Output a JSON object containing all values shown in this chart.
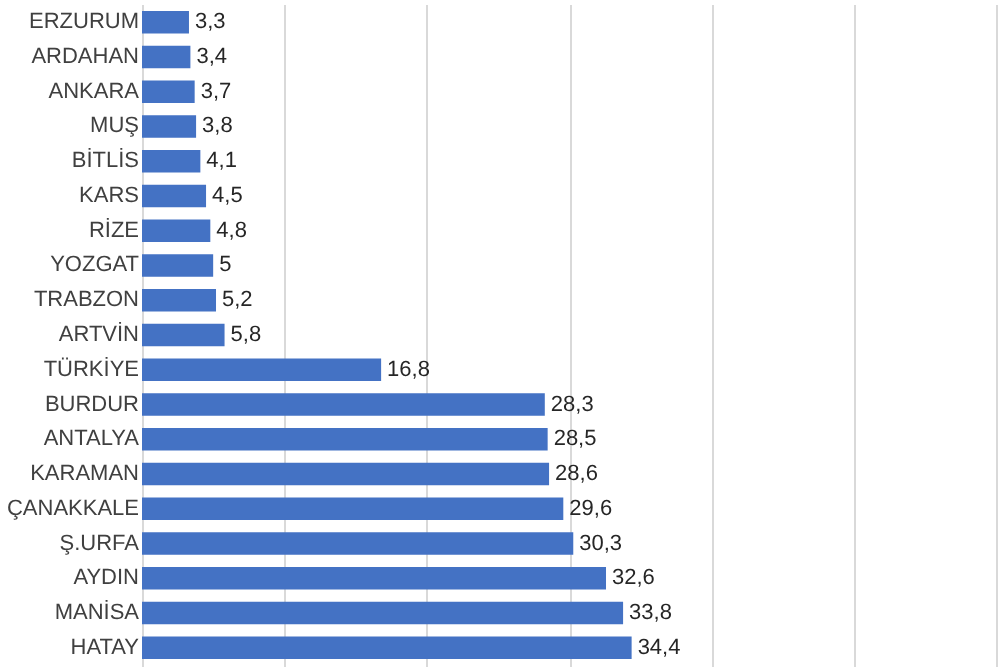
{
  "chart_data": {
    "type": "bar",
    "orientation": "horizontal",
    "categories": [
      "ERZURUM",
      "ARDAHAN",
      "ANKARA",
      "MUŞ",
      "BİTLİS",
      "KARS",
      "RİZE",
      "YOZGAT",
      "TRABZON",
      "ARTVİN",
      "TÜRKİYE",
      "BURDUR",
      "ANTALYA",
      "KARAMAN",
      "ÇANAKKALE",
      "Ş.URFA",
      "AYDIN",
      "MANİSA",
      "HATAY"
    ],
    "values": [
      3.3,
      3.4,
      3.7,
      3.8,
      4.1,
      4.5,
      4.8,
      5,
      5.2,
      5.8,
      16.8,
      28.3,
      28.5,
      28.6,
      29.6,
      30.3,
      32.6,
      33.8,
      34.4
    ],
    "value_labels": [
      "3,3",
      "3,4",
      "3,7",
      "3,8",
      "4,1",
      "4,5",
      "4,8",
      "5",
      "5,2",
      "5,8",
      "16,8",
      "28,3",
      "28,5",
      "28,6",
      "29,6",
      "30,3",
      "32,6",
      "33,8",
      "34,4"
    ],
    "color": "#4472c4",
    "xlim": [
      0,
      60
    ],
    "xticks": [
      {
        "value": 0,
        "label": null
      },
      {
        "value": 10,
        "label": null
      },
      {
        "value": 20,
        "label": null
      },
      {
        "value": 30,
        "label": null
      },
      {
        "value": 40,
        "label": null
      },
      {
        "value": 50,
        "label": null
      },
      {
        "value": 60,
        "label": null
      }
    ],
    "grid": "x",
    "tick_labels": "y"
  }
}
